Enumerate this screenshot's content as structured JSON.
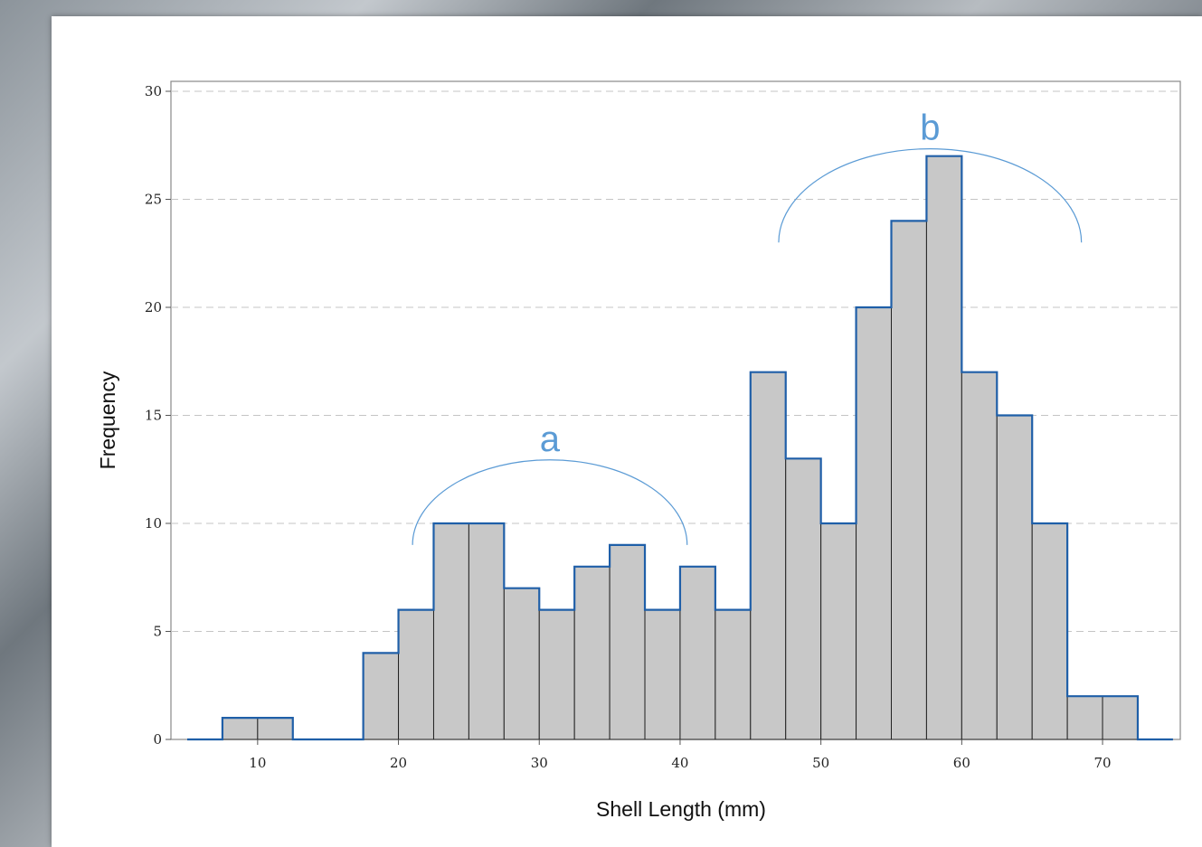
{
  "chart_data": {
    "type": "bar",
    "subtype": "histogram",
    "xlabel": "Shell Length (mm)",
    "ylabel": "Frequency",
    "bin_width": 2.5,
    "bins": [
      {
        "x0": 7.5,
        "x1": 10,
        "count": 1
      },
      {
        "x0": 10,
        "x1": 12.5,
        "count": 1
      },
      {
        "x0": 12.5,
        "x1": 15,
        "count": 0
      },
      {
        "x0": 15,
        "x1": 17.5,
        "count": 0
      },
      {
        "x0": 17.5,
        "x1": 20,
        "count": 4
      },
      {
        "x0": 20,
        "x1": 22.5,
        "count": 6
      },
      {
        "x0": 22.5,
        "x1": 25,
        "count": 10
      },
      {
        "x0": 25,
        "x1": 27.5,
        "count": 10
      },
      {
        "x0": 27.5,
        "x1": 30,
        "count": 7
      },
      {
        "x0": 30,
        "x1": 32.5,
        "count": 6
      },
      {
        "x0": 32.5,
        "x1": 35,
        "count": 8
      },
      {
        "x0": 35,
        "x1": 37.5,
        "count": 9
      },
      {
        "x0": 37.5,
        "x1": 40,
        "count": 6
      },
      {
        "x0": 40,
        "x1": 42.5,
        "count": 8
      },
      {
        "x0": 42.5,
        "x1": 45,
        "count": 6
      },
      {
        "x0": 45,
        "x1": 47.5,
        "count": 17
      },
      {
        "x0": 47.5,
        "x1": 50,
        "count": 13
      },
      {
        "x0": 50,
        "x1": 52.5,
        "count": 10
      },
      {
        "x0": 52.5,
        "x1": 55,
        "count": 20
      },
      {
        "x0": 55,
        "x1": 57.5,
        "count": 24
      },
      {
        "x0": 57.5,
        "x1": 60,
        "count": 27
      },
      {
        "x0": 60,
        "x1": 62.5,
        "count": 17
      },
      {
        "x0": 62.5,
        "x1": 65,
        "count": 15
      },
      {
        "x0": 65,
        "x1": 67.5,
        "count": 10
      },
      {
        "x0": 67.5,
        "x1": 70,
        "count": 2
      },
      {
        "x0": 70,
        "x1": 72.5,
        "count": 2
      }
    ],
    "xlim": [
      5,
      75
    ],
    "ylim": [
      0,
      30
    ],
    "xticks": [
      10,
      20,
      30,
      40,
      50,
      60,
      70
    ],
    "yticks": [
      0,
      5,
      10,
      15,
      20,
      25,
      30
    ],
    "grid": "horizontal-dashed",
    "colors": {
      "bar_fill": "#c8c8c8",
      "bar_edge": "#222222",
      "outline": "#1f5fa8",
      "annotation": "#5b9bd5"
    },
    "annotations": [
      {
        "label": "a",
        "x_from": 21,
        "x_to": 40.5,
        "y": 9
      },
      {
        "label": "b",
        "x_from": 47,
        "x_to": 68.5,
        "y": 23
      }
    ]
  }
}
